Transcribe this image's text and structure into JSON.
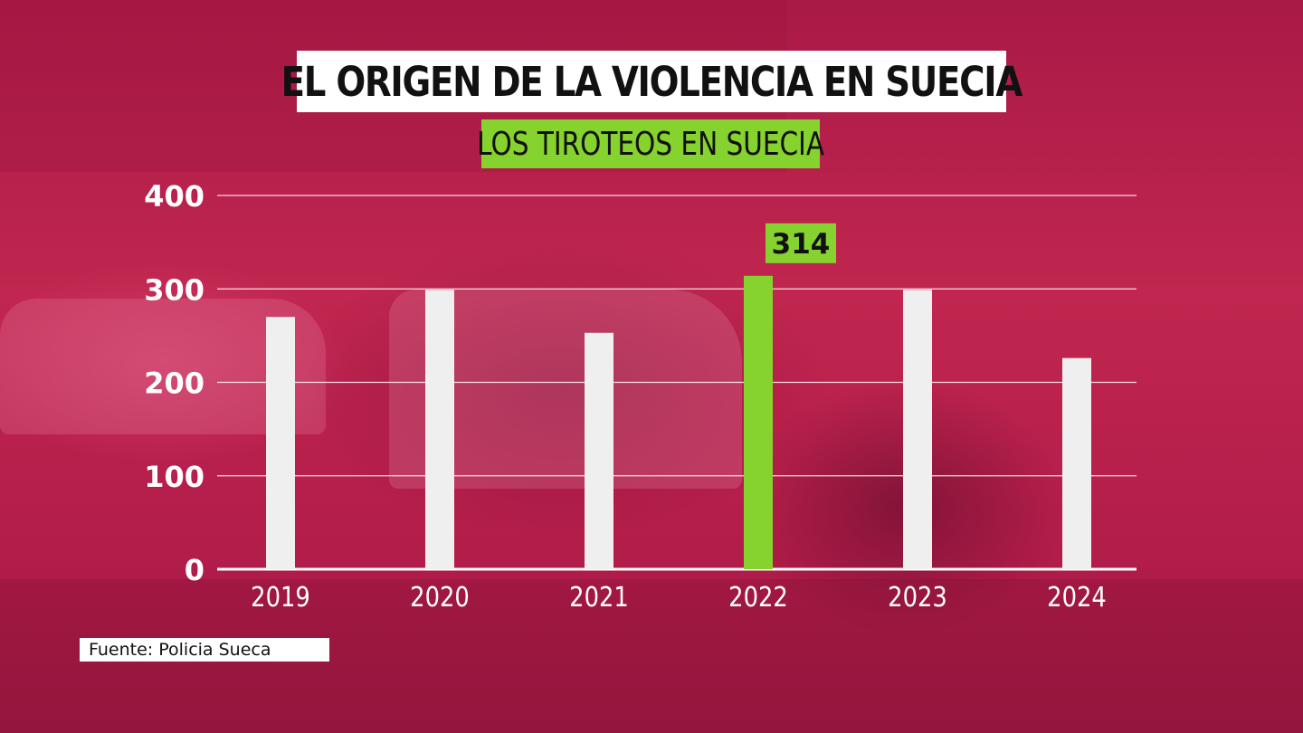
{
  "header": {
    "title": "EL ORIGEN DE LA VIOLENCIA EN SUECIA",
    "subtitle": "LOS TIROTEOS EN SUECIA"
  },
  "source": "Fuente: Policia Sueca",
  "colors": {
    "background": "#b8204e",
    "bar": "#efefef",
    "highlight": "#86d22e",
    "text": "#ffffff"
  },
  "chart_data": {
    "type": "bar",
    "title": "LOS TIROTEOS EN SUECIA",
    "categories": [
      "2019",
      "2020",
      "2021",
      "2022",
      "2023",
      "2024"
    ],
    "values": [
      270,
      299,
      253,
      314,
      299,
      226
    ],
    "highlight_index": 3,
    "data_labels": [
      {
        "category": "2022",
        "text": "314"
      }
    ],
    "ylim": [
      0,
      400
    ],
    "yticks": [
      "0",
      "100",
      "200",
      "300",
      "400"
    ],
    "xlabel": "",
    "ylabel": "",
    "grid": true
  }
}
